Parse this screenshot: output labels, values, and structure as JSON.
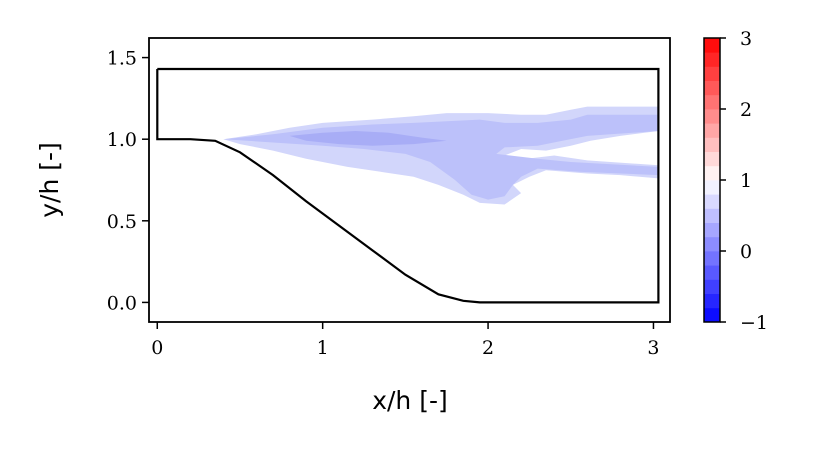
{
  "chart_data": {
    "type": "contour",
    "xlabel": "x/h [-]",
    "ylabel": "y/h [-]",
    "xlim": [
      -0.05,
      3.1
    ],
    "ylim": [
      -0.12,
      1.62
    ],
    "x_ticks": [
      {
        "value": 0,
        "label": "0"
      },
      {
        "value": 1,
        "label": "1"
      },
      {
        "value": 2,
        "label": "2"
      },
      {
        "value": 3,
        "label": "3"
      }
    ],
    "y_ticks": [
      {
        "value": 0.0,
        "label": "0.0"
      },
      {
        "value": 0.5,
        "label": "0.5"
      },
      {
        "value": 1.0,
        "label": "1.0"
      },
      {
        "value": 1.5,
        "label": "1.5"
      }
    ],
    "domain_outline": [
      [
        0.0,
        1.43
      ],
      [
        3.03,
        1.43
      ],
      [
        3.03,
        0.0
      ],
      [
        1.95,
        0.0
      ],
      [
        1.85,
        0.01
      ],
      [
        1.7,
        0.05
      ],
      [
        1.5,
        0.17
      ],
      [
        1.3,
        0.32
      ],
      [
        1.1,
        0.47
      ],
      [
        0.9,
        0.62
      ],
      [
        0.7,
        0.78
      ],
      [
        0.5,
        0.92
      ],
      [
        0.35,
        0.99
      ],
      [
        0.2,
        1.0
      ],
      [
        0.0,
        1.0
      ],
      [
        0.0,
        1.43
      ]
    ],
    "contour_regions": [
      {
        "level": 0.75,
        "color": "#d2d6fb",
        "points": [
          [
            0.4,
            1.0
          ],
          [
            0.6,
            1.03
          ],
          [
            0.8,
            1.07
          ],
          [
            1.0,
            1.1
          ],
          [
            1.3,
            1.12
          ],
          [
            1.55,
            1.14
          ],
          [
            1.75,
            1.16
          ],
          [
            2.0,
            1.16
          ],
          [
            2.2,
            1.15
          ],
          [
            2.35,
            1.15
          ],
          [
            2.5,
            1.18
          ],
          [
            2.6,
            1.2
          ],
          [
            3.03,
            1.2
          ],
          [
            3.03,
            1.05
          ],
          [
            2.8,
            1.02
          ],
          [
            2.62,
            0.99
          ],
          [
            2.5,
            0.96
          ],
          [
            2.35,
            0.93
          ],
          [
            2.2,
            0.94
          ],
          [
            2.1,
            0.9
          ],
          [
            2.15,
            0.87
          ],
          [
            2.4,
            0.9
          ],
          [
            2.6,
            0.87
          ],
          [
            3.03,
            0.84
          ],
          [
            3.03,
            0.76
          ],
          [
            2.8,
            0.78
          ],
          [
            2.6,
            0.79
          ],
          [
            2.35,
            0.81
          ],
          [
            2.25,
            0.77
          ],
          [
            2.15,
            0.72
          ],
          [
            2.2,
            0.67
          ],
          [
            2.1,
            0.6
          ],
          [
            1.95,
            0.61
          ],
          [
            1.85,
            0.66
          ],
          [
            1.7,
            0.72
          ],
          [
            1.55,
            0.77
          ],
          [
            1.35,
            0.8
          ],
          [
            1.15,
            0.83
          ],
          [
            0.9,
            0.88
          ],
          [
            0.7,
            0.93
          ],
          [
            0.5,
            0.97
          ],
          [
            0.4,
            1.0
          ]
        ]
      },
      {
        "level": 0.5,
        "color": "#bcc1fa",
        "points": [
          [
            0.4,
            1.0
          ],
          [
            0.7,
            1.03
          ],
          [
            1.0,
            1.07
          ],
          [
            1.3,
            1.09
          ],
          [
            1.55,
            1.1
          ],
          [
            1.75,
            1.11
          ],
          [
            1.95,
            1.12
          ],
          [
            2.1,
            1.1
          ],
          [
            2.3,
            1.1
          ],
          [
            2.5,
            1.12
          ],
          [
            2.6,
            1.15
          ],
          [
            3.03,
            1.15
          ],
          [
            3.03,
            1.05
          ],
          [
            2.6,
            1.02
          ],
          [
            2.45,
            0.99
          ],
          [
            2.3,
            0.96
          ],
          [
            2.1,
            0.95
          ],
          [
            2.05,
            0.91
          ],
          [
            2.3,
            0.88
          ],
          [
            2.5,
            0.86
          ],
          [
            3.03,
            0.83
          ],
          [
            3.03,
            0.78
          ],
          [
            2.55,
            0.8
          ],
          [
            2.3,
            0.82
          ],
          [
            2.2,
            0.77
          ],
          [
            2.15,
            0.72
          ],
          [
            2.1,
            0.65
          ],
          [
            2.0,
            0.63
          ],
          [
            1.9,
            0.66
          ],
          [
            1.8,
            0.75
          ],
          [
            1.65,
            0.86
          ],
          [
            1.5,
            0.91
          ],
          [
            1.25,
            0.94
          ],
          [
            1.0,
            0.96
          ],
          [
            0.7,
            0.98
          ],
          [
            0.4,
            1.0
          ]
        ]
      },
      {
        "level": 0.25,
        "color": "#a8adf6",
        "points": [
          [
            0.8,
            1.02
          ],
          [
            1.0,
            1.04
          ],
          [
            1.2,
            1.05
          ],
          [
            1.4,
            1.04
          ],
          [
            1.6,
            1.01
          ],
          [
            1.75,
            0.99
          ],
          [
            1.55,
            0.97
          ],
          [
            1.3,
            0.96
          ],
          [
            1.1,
            0.97
          ],
          [
            0.9,
            0.99
          ],
          [
            0.8,
            1.02
          ]
        ]
      }
    ],
    "colorbar": {
      "range": [
        -1,
        3
      ],
      "levels": 20,
      "colormap": "bwr",
      "ticks": [
        {
          "value": -1,
          "label": "−1"
        },
        {
          "value": 0,
          "label": "0"
        },
        {
          "value": 1,
          "label": "1"
        },
        {
          "value": 2,
          "label": "2"
        },
        {
          "value": 3,
          "label": "3"
        }
      ]
    }
  }
}
